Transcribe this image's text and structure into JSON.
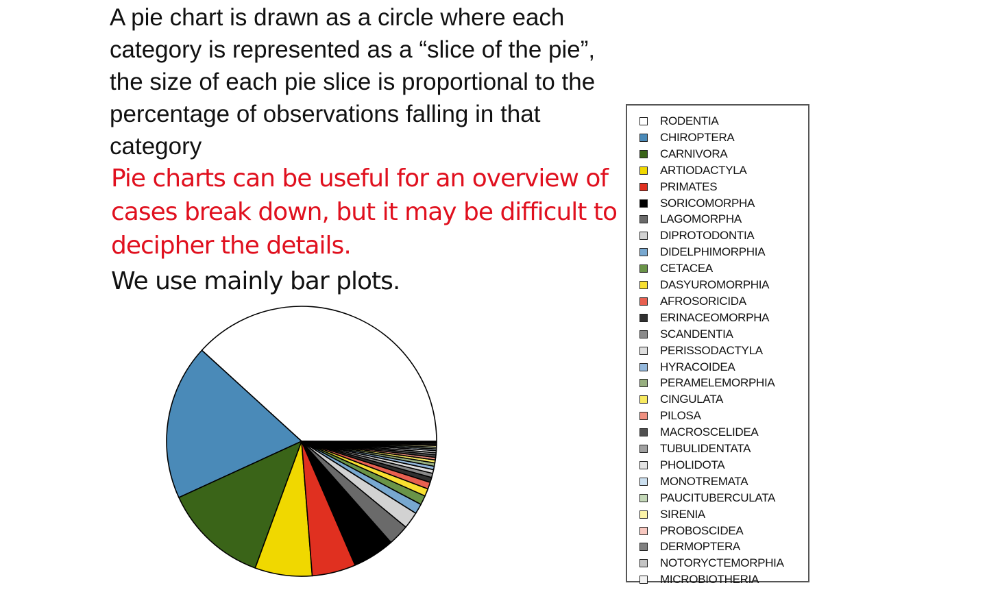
{
  "slide": {
    "description": "A pie chart is drawn as a circle where each category is represented as a “slice of the pie”, the size of each pie slice is proportional to the percentage of observations falling in that category",
    "note": "Pie charts can be useful for an overview of cases break down, but it may be difficult to decipher the details.",
    "bar_plots": "We use mainly bar plots.",
    "note_color": "#e0101e"
  },
  "chart_data": {
    "type": "pie",
    "title": "",
    "legend_position": "right",
    "start_direction": "east",
    "direction": "counterclockwise",
    "slices": [
      {
        "label": "RODENTIA",
        "value": 38.0,
        "color": "#ffffff"
      },
      {
        "label": "CHIROPTERA",
        "value": 18.5,
        "color": "#4a8ab8"
      },
      {
        "label": "CARNIVORA",
        "value": 12.5,
        "color": "#3a6418"
      },
      {
        "label": "ARTIODACTYLA",
        "value": 6.8,
        "color": "#f0d800"
      },
      {
        "label": "PRIMATES",
        "value": 5.2,
        "color": "#e03020"
      },
      {
        "label": "SORICOMORPHA",
        "value": 5.0,
        "color": "#000000"
      },
      {
        "label": "LAGOMORPHA",
        "value": 2.5,
        "color": "#6a6a6a"
      },
      {
        "label": "DIPROTODONTIA",
        "value": 2.0,
        "color": "#d2d2d2"
      },
      {
        "label": "DIDELPHIMORPHIA",
        "value": 1.2,
        "color": "#78a8d0"
      },
      {
        "label": "CETACEA",
        "value": 1.1,
        "color": "#6a9448"
      },
      {
        "label": "DASYUROMORPHIA",
        "value": 0.9,
        "color": "#f8e030"
      },
      {
        "label": "AFROSORICIDA",
        "value": 0.8,
        "color": "#e86050"
      },
      {
        "label": "ERINACEOMORPHA",
        "value": 0.6,
        "color": "#303030"
      },
      {
        "label": "SCANDENTIA",
        "value": 0.5,
        "color": "#8a8a8a"
      },
      {
        "label": "PERISSODACTYLA",
        "value": 0.45,
        "color": "#dedede"
      },
      {
        "label": "HYRACOIDEA",
        "value": 0.4,
        "color": "#94b8dc"
      },
      {
        "label": "PERAMELEMORPHIA",
        "value": 0.4,
        "color": "#98b080"
      },
      {
        "label": "CINGULATA",
        "value": 0.35,
        "color": "#f8ea60"
      },
      {
        "label": "PILOSA",
        "value": 0.3,
        "color": "#f09080"
      },
      {
        "label": "MACROSCELIDEA",
        "value": 0.3,
        "color": "#505050"
      },
      {
        "label": "TUBULIDENTATA",
        "value": 0.25,
        "color": "#a0a0a0"
      },
      {
        "label": "PHOLIDOTA",
        "value": 0.25,
        "color": "#e4e4e4"
      },
      {
        "label": "MONOTREMATA",
        "value": 0.2,
        "color": "#cce0f0"
      },
      {
        "label": "PAUCITUBERCULATA",
        "value": 0.2,
        "color": "#c4d8b8"
      },
      {
        "label": "SIRENIA",
        "value": 0.2,
        "color": "#fcf4a8"
      },
      {
        "label": "PROBOSCIDEA",
        "value": 0.15,
        "color": "#f8c8c0"
      },
      {
        "label": "DERMOPTERA",
        "value": 0.15,
        "color": "#808080"
      },
      {
        "label": "NOTORYCTEMORPHIA",
        "value": 0.1,
        "color": "#c4c4c4"
      },
      {
        "label": "MICROBIOTHERIA",
        "value": 0.1,
        "color": "#f2f2f2"
      }
    ]
  }
}
